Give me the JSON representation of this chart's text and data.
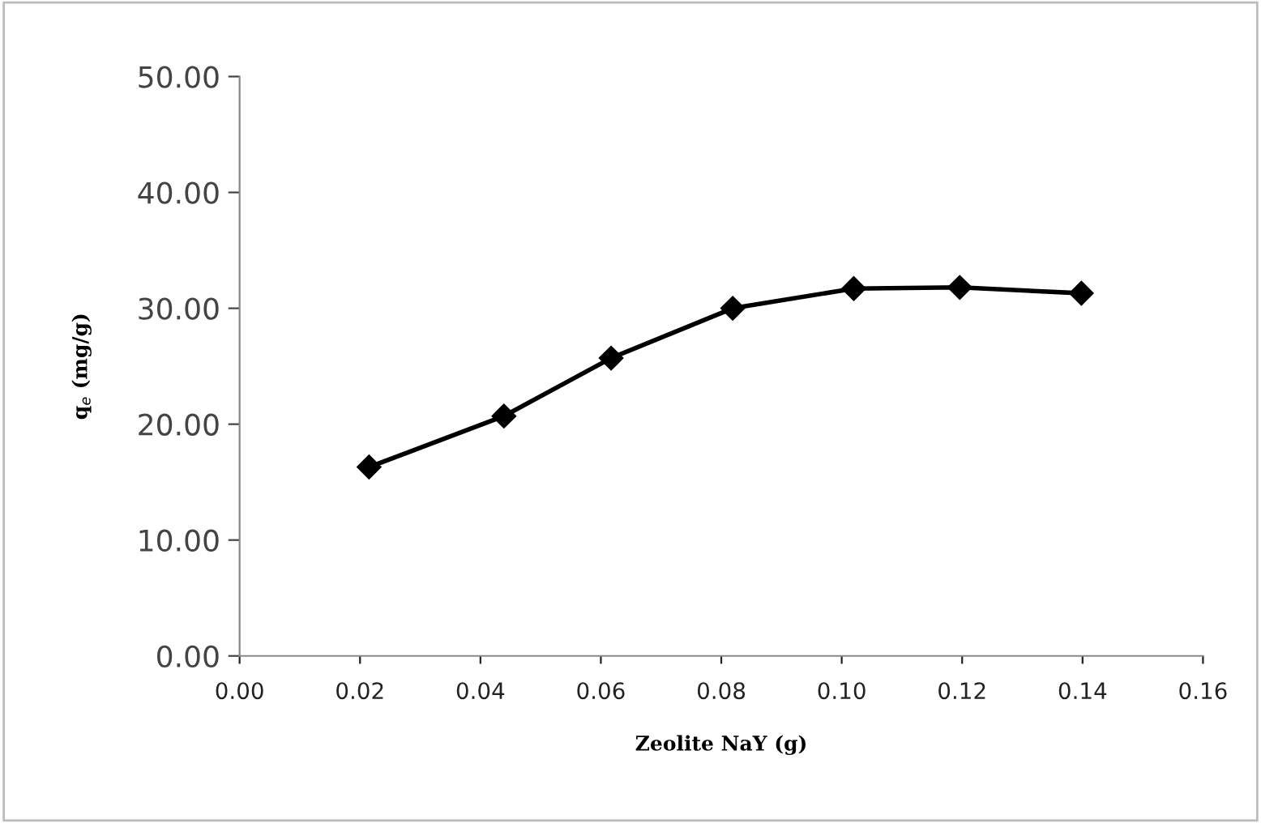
{
  "chart_data": {
    "type": "line",
    "xlabel": "Zeolite NaY (g)",
    "ylabel": "q$_{e}$ (mg/g)",
    "x": [
      0.0215,
      0.0439,
      0.0617,
      0.0819,
      0.102,
      0.1196,
      0.1398
    ],
    "series": [
      {
        "color": "#000000",
        "values": [
          16.3,
          20.7,
          25.7,
          30.0,
          31.7,
          31.8,
          31.3
        ]
      }
    ],
    "marker": "diamond",
    "line_style": "solid",
    "grid": false,
    "legend": false,
    "xlim": [
      0,
      0.16
    ],
    "xticks": [
      {
        "value": 0,
        "label": "0.00"
      },
      {
        "value": 0.02,
        "label": "0.02"
      },
      {
        "value": 0.04,
        "label": "0.04"
      },
      {
        "value": 0.06,
        "label": "0.06"
      },
      {
        "value": 0.08,
        "label": "0.08"
      },
      {
        "value": 0.1,
        "label": "0.10"
      },
      {
        "value": 0.12,
        "label": "0.12"
      },
      {
        "value": 0.14,
        "label": "0.14"
      },
      {
        "value": 0.16,
        "label": "0.16"
      }
    ],
    "ylim": [
      0,
      50
    ],
    "yticks": [
      {
        "value": 0,
        "label": "0.00"
      },
      {
        "value": 10,
        "label": "10.00"
      },
      {
        "value": 20,
        "label": "20.00"
      },
      {
        "value": 30,
        "label": "30.00"
      },
      {
        "value": 40,
        "label": "40.00"
      },
      {
        "value": 50,
        "label": "50.00"
      }
    ]
  }
}
